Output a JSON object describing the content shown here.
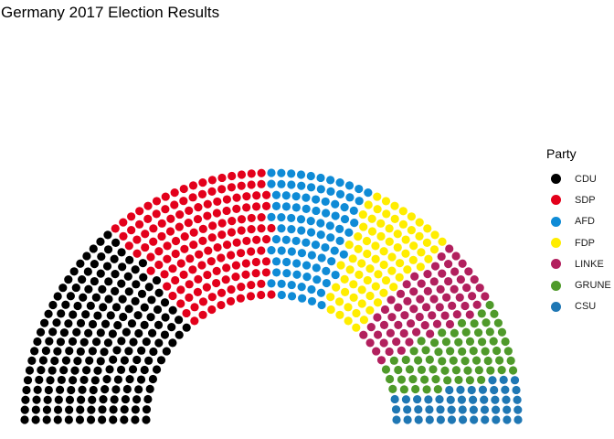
{
  "chart_data": {
    "type": "parliament",
    "title": "Germany 2017 Election Results",
    "legend_title": "Party",
    "legend_position": "right",
    "grid": false,
    "series": [
      {
        "name": "CDU",
        "value": 200,
        "color": "#000000"
      },
      {
        "name": "SDP",
        "value": 153,
        "color": "#e3001b"
      },
      {
        "name": "AFD",
        "value": 94,
        "color": "#0f8bd6"
      },
      {
        "name": "FDP",
        "value": 80,
        "color": "#ffed00"
      },
      {
        "name": "LINKE",
        "value": 69,
        "color": "#b2205e"
      },
      {
        "name": "GRUNE",
        "value": 67,
        "color": "#4f9a2a"
      },
      {
        "name": "CSU",
        "value": 46,
        "color": "#1f77b4"
      }
    ]
  }
}
